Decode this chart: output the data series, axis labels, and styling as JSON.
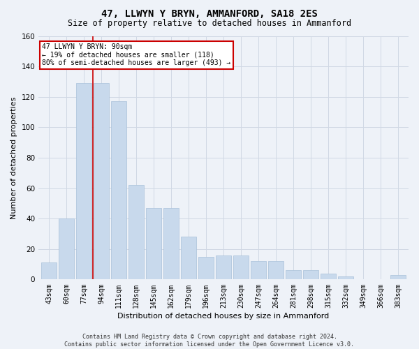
{
  "title": "47, LLWYN Y BRYN, AMMANFORD, SA18 2ES",
  "subtitle": "Size of property relative to detached houses in Ammanford",
  "xlabel": "Distribution of detached houses by size in Ammanford",
  "ylabel": "Number of detached properties",
  "categories": [
    "43sqm",
    "60sqm",
    "77sqm",
    "94sqm",
    "111sqm",
    "128sqm",
    "145sqm",
    "162sqm",
    "179sqm",
    "196sqm",
    "213sqm",
    "230sqm",
    "247sqm",
    "264sqm",
    "281sqm",
    "298sqm",
    "315sqm",
    "332sqm",
    "349sqm",
    "366sqm",
    "383sqm"
  ],
  "values": [
    11,
    40,
    129,
    129,
    117,
    62,
    47,
    47,
    28,
    15,
    16,
    16,
    12,
    12,
    6,
    6,
    4,
    2,
    0,
    0,
    3
  ],
  "bar_color": "#c8d9ec",
  "bar_edge_color": "#a8c0da",
  "grid_color": "#d0d8e4",
  "vline_color": "#cc0000",
  "vline_x": 2.5,
  "annotation_text": "47 LLWYN Y BRYN: 90sqm\n← 19% of detached houses are smaller (118)\n80% of semi-detached houses are larger (493) →",
  "annotation_box_facecolor": "#ffffff",
  "annotation_box_edgecolor": "#cc0000",
  "ylim": [
    0,
    160
  ],
  "yticks": [
    0,
    20,
    40,
    60,
    80,
    100,
    120,
    140,
    160
  ],
  "footer_text": "Contains HM Land Registry data © Crown copyright and database right 2024.\nContains public sector information licensed under the Open Government Licence v3.0.",
  "background_color": "#eef2f8"
}
